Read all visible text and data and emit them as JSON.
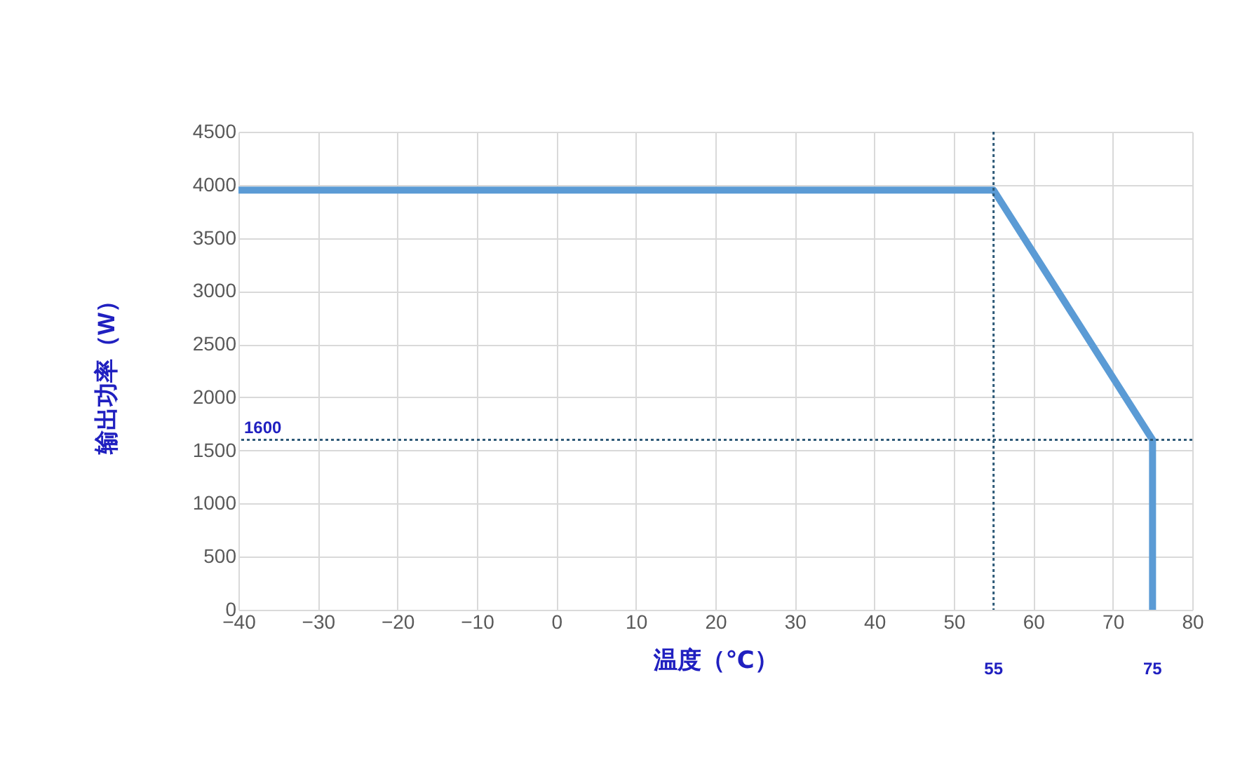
{
  "chart_data": {
    "type": "line",
    "xlabel": "温度（℃）",
    "ylabel": "输出功率（W）",
    "x": [
      -40,
      55,
      75,
      75
    ],
    "series": [
      {
        "color": "#5b9bd5",
        "values": [
          3950,
          3950,
          1600,
          0
        ]
      }
    ],
    "xlim": [
      -40,
      80
    ],
    "xticks": [
      -40,
      -30,
      -20,
      -10,
      0,
      10,
      20,
      30,
      40,
      50,
      60,
      70,
      80
    ],
    "ylim": [
      0,
      4500
    ],
    "yticks": [
      0,
      500,
      1000,
      1500,
      2000,
      2500,
      3000,
      3500,
      4000,
      4500
    ],
    "grid": true,
    "marker": "none",
    "line_style": "solid",
    "ref_lines": [
      {
        "axis": "y",
        "value": 1600,
        "label": "1600",
        "line_style": "dotted",
        "color": "#2e5a78"
      },
      {
        "axis": "x",
        "value": 55,
        "label": "55",
        "line_style": "dotted",
        "color": "#2e5a78"
      }
    ],
    "annotations": [
      {
        "text": "75",
        "x": 75,
        "y": 0
      }
    ]
  }
}
